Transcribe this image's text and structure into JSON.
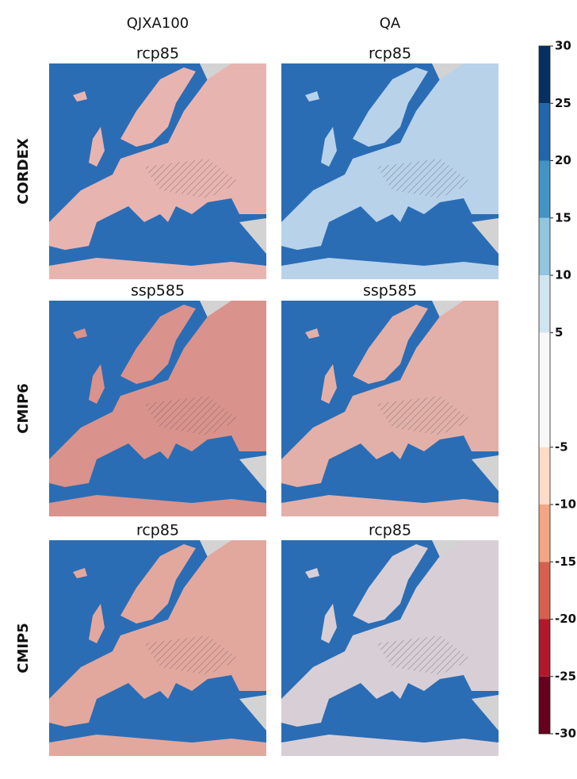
{
  "columns": [
    "QJXA100",
    "QA"
  ],
  "rows": [
    {
      "label": "CORDEX",
      "panels": [
        "rcp85",
        "rcp85"
      ]
    },
    {
      "label": "CMIP6",
      "panels": [
        "ssp585",
        "ssp585"
      ]
    },
    {
      "label": "CMIP5",
      "panels": [
        "rcp85",
        "rcp85"
      ]
    }
  ],
  "colorbar": {
    "lim": [
      -30,
      30
    ],
    "ticks": [
      -30,
      -25,
      -20,
      -15,
      -10,
      -5,
      5,
      10,
      15,
      20,
      25,
      30
    ],
    "colors": [
      "#67001f",
      "#b2182b",
      "#d6604d",
      "#f4a582",
      "#fddbc7",
      "#f7f7f7",
      "#d1e5f0",
      "#92c5de",
      "#4393c3",
      "#2166ac",
      "#053061"
    ]
  }
}
